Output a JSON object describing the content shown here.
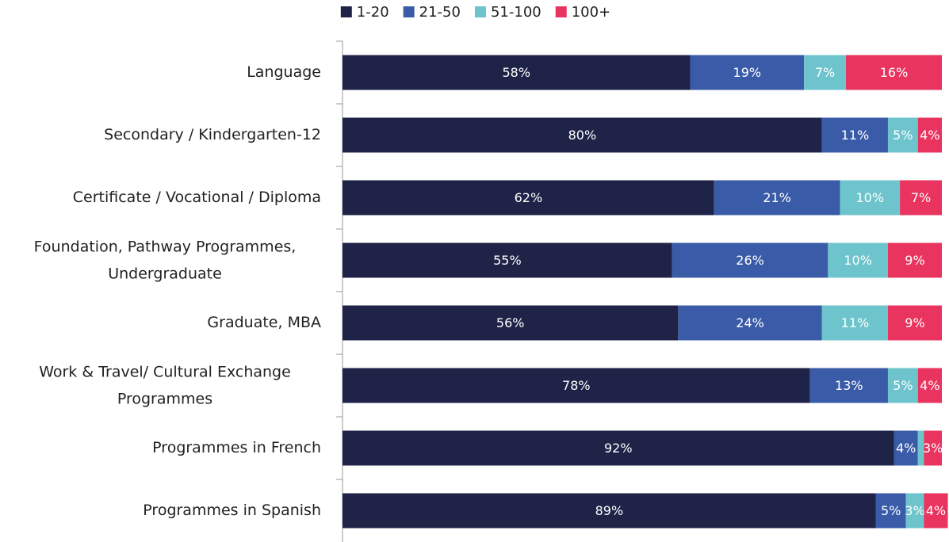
{
  "chart_data": {
    "type": "stacked-barh",
    "categories": [
      "Language",
      "Secondary / Kindergarten-12",
      "Certificate / Vocational / Diploma",
      "Foundation, Pathway Programmes, Undergraduate",
      "Graduate, MBA",
      "Work & Travel/ Cultural Exchange Programmes",
      "Programmes in French",
      "Programmes in Spanish"
    ],
    "xlim": [
      0,
      100
    ],
    "legend": "top",
    "series": [
      {
        "name": "1-20",
        "color": "#1f2347",
        "values": [
          58,
          80,
          62,
          55,
          56,
          78,
          92,
          89
        ],
        "value_labels": [
          "58%",
          "80%",
          "62%",
          "55%",
          "56%",
          "78%",
          "92%",
          "89%"
        ]
      },
      {
        "name": "21-50",
        "color": "#3a5ba8",
        "values": [
          19,
          11,
          21,
          26,
          24,
          13,
          4,
          5
        ],
        "value_labels": [
          "19%",
          "11%",
          "21%",
          "26%",
          "24%",
          "13%",
          "4%",
          "5%"
        ]
      },
      {
        "name": "51-100",
        "color": "#6ec4cc",
        "values": [
          7,
          5,
          10,
          10,
          11,
          5,
          1,
          3
        ],
        "value_labels": [
          "7%",
          "5%",
          "10%",
          "10%",
          "11%",
          "5%",
          null,
          "3%"
        ]
      },
      {
        "name": "100+",
        "color": "#e8345f",
        "values": [
          16,
          4,
          7,
          9,
          9,
          4,
          3,
          4
        ],
        "value_labels": [
          "16%",
          "4%",
          "7%",
          "9%",
          "9%",
          "4%",
          "3%",
          "4%"
        ]
      }
    ]
  }
}
